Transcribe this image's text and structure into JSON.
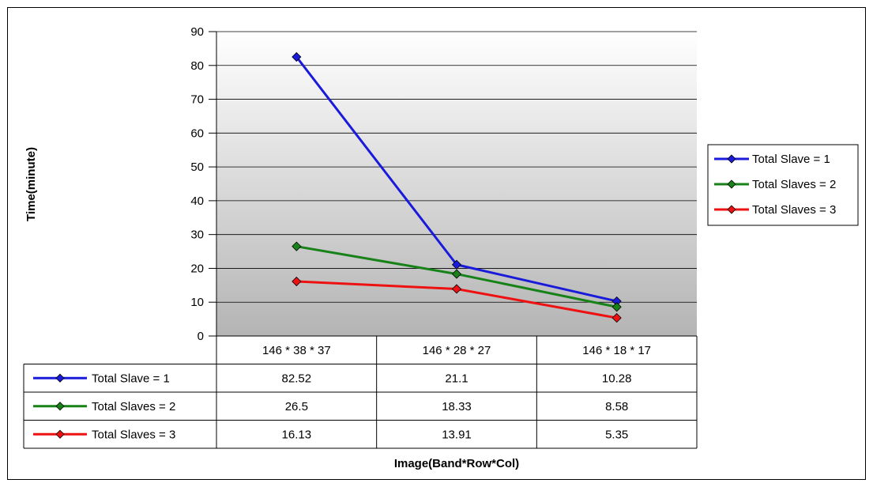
{
  "chart_data": {
    "type": "line",
    "title": "",
    "xlabel": "Image(Band*Row*Col)",
    "ylabel": "Time(minute)",
    "ylim": [
      0,
      90
    ],
    "yticks": [
      "0",
      "10",
      "20",
      "30",
      "40",
      "50",
      "60",
      "70",
      "80",
      "90"
    ],
    "grid": true,
    "legend_position": "right",
    "categories": [
      "146 * 38 * 37",
      "146 * 28 * 27",
      "146 * 18 * 17"
    ],
    "series": [
      {
        "name": "Total Slave = 1",
        "color": "#1a1adb",
        "marker": "diamond",
        "values": [
          82.52,
          21.1,
          10.28
        ],
        "labels": [
          "82.52",
          "21.1",
          "10.28"
        ]
      },
      {
        "name": "Total Slaves = 2",
        "color": "#178217",
        "marker": "diamond",
        "values": [
          26.5,
          18.33,
          8.58
        ],
        "labels": [
          "26.5",
          "18.33",
          "8.58"
        ]
      },
      {
        "name": "Total Slaves = 3",
        "color": "#ee1111",
        "marker": "diamond",
        "values": [
          16.13,
          13.91,
          5.35
        ],
        "labels": [
          "16.13",
          "13.91",
          "5.35"
        ]
      }
    ]
  }
}
